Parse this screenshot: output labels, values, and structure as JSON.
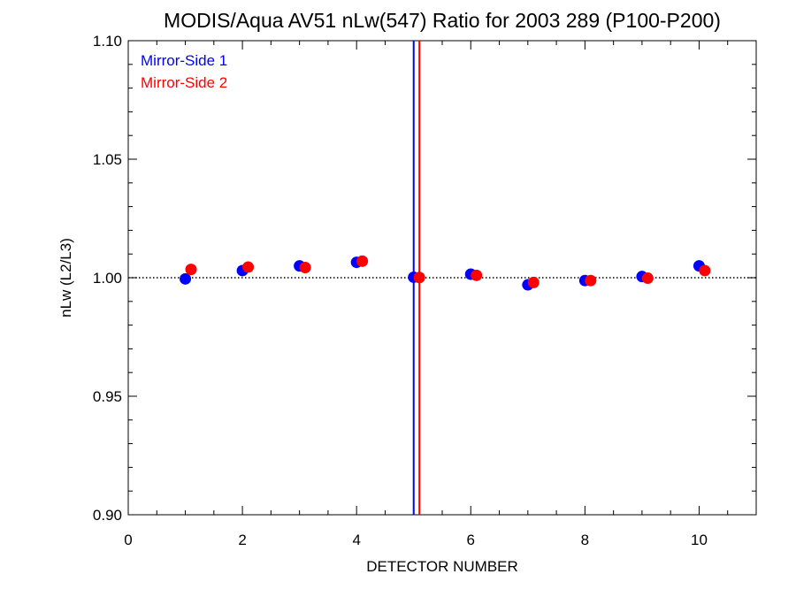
{
  "chart_data": {
    "type": "scatter",
    "title": "MODIS/Aqua AV51 nLw(547) Ratio for 2003 289 (P100-P200)",
    "xlabel": "DETECTOR NUMBER",
    "ylabel": "nLw (L2/L3)",
    "xlim": [
      0,
      11
    ],
    "ylim": [
      0.9,
      1.1
    ],
    "x_ticks": [
      "0",
      "2",
      "4",
      "6",
      "8",
      "10"
    ],
    "y_ticks": [
      "0.90",
      "0.95",
      "1.00",
      "1.05",
      "1.10"
    ],
    "reference_line": {
      "y": 1.0,
      "style": "dotted",
      "color": "#000000"
    },
    "vertical_lines": [
      {
        "x": 5.0,
        "color": "#0000ff"
      },
      {
        "x": 5.1,
        "color": "#ff0000"
      }
    ],
    "legend_position": "top-left",
    "series": [
      {
        "name": "Mirror-Side 1",
        "color": "#0000ff",
        "points": [
          [
            1,
            0.9995
          ],
          [
            2,
            1.003
          ],
          [
            3,
            1.005
          ],
          [
            4,
            1.0065
          ],
          [
            5,
            1.0002
          ],
          [
            6,
            1.0015
          ],
          [
            7,
            0.997
          ],
          [
            8,
            0.9988
          ],
          [
            9,
            1.0005
          ],
          [
            10,
            1.005
          ]
        ]
      },
      {
        "name": "Mirror-Side 2",
        "color": "#ff0000",
        "points": [
          [
            1.1,
            1.0035
          ],
          [
            2.1,
            1.0045
          ],
          [
            3.1,
            1.0043
          ],
          [
            4.1,
            1.007
          ],
          [
            5.1,
            1.0001
          ],
          [
            6.1,
            1.001
          ],
          [
            7.1,
            0.998
          ],
          [
            8.1,
            0.9988
          ],
          [
            9.1,
            0.9998
          ],
          [
            10.1,
            1.003
          ]
        ]
      }
    ]
  }
}
